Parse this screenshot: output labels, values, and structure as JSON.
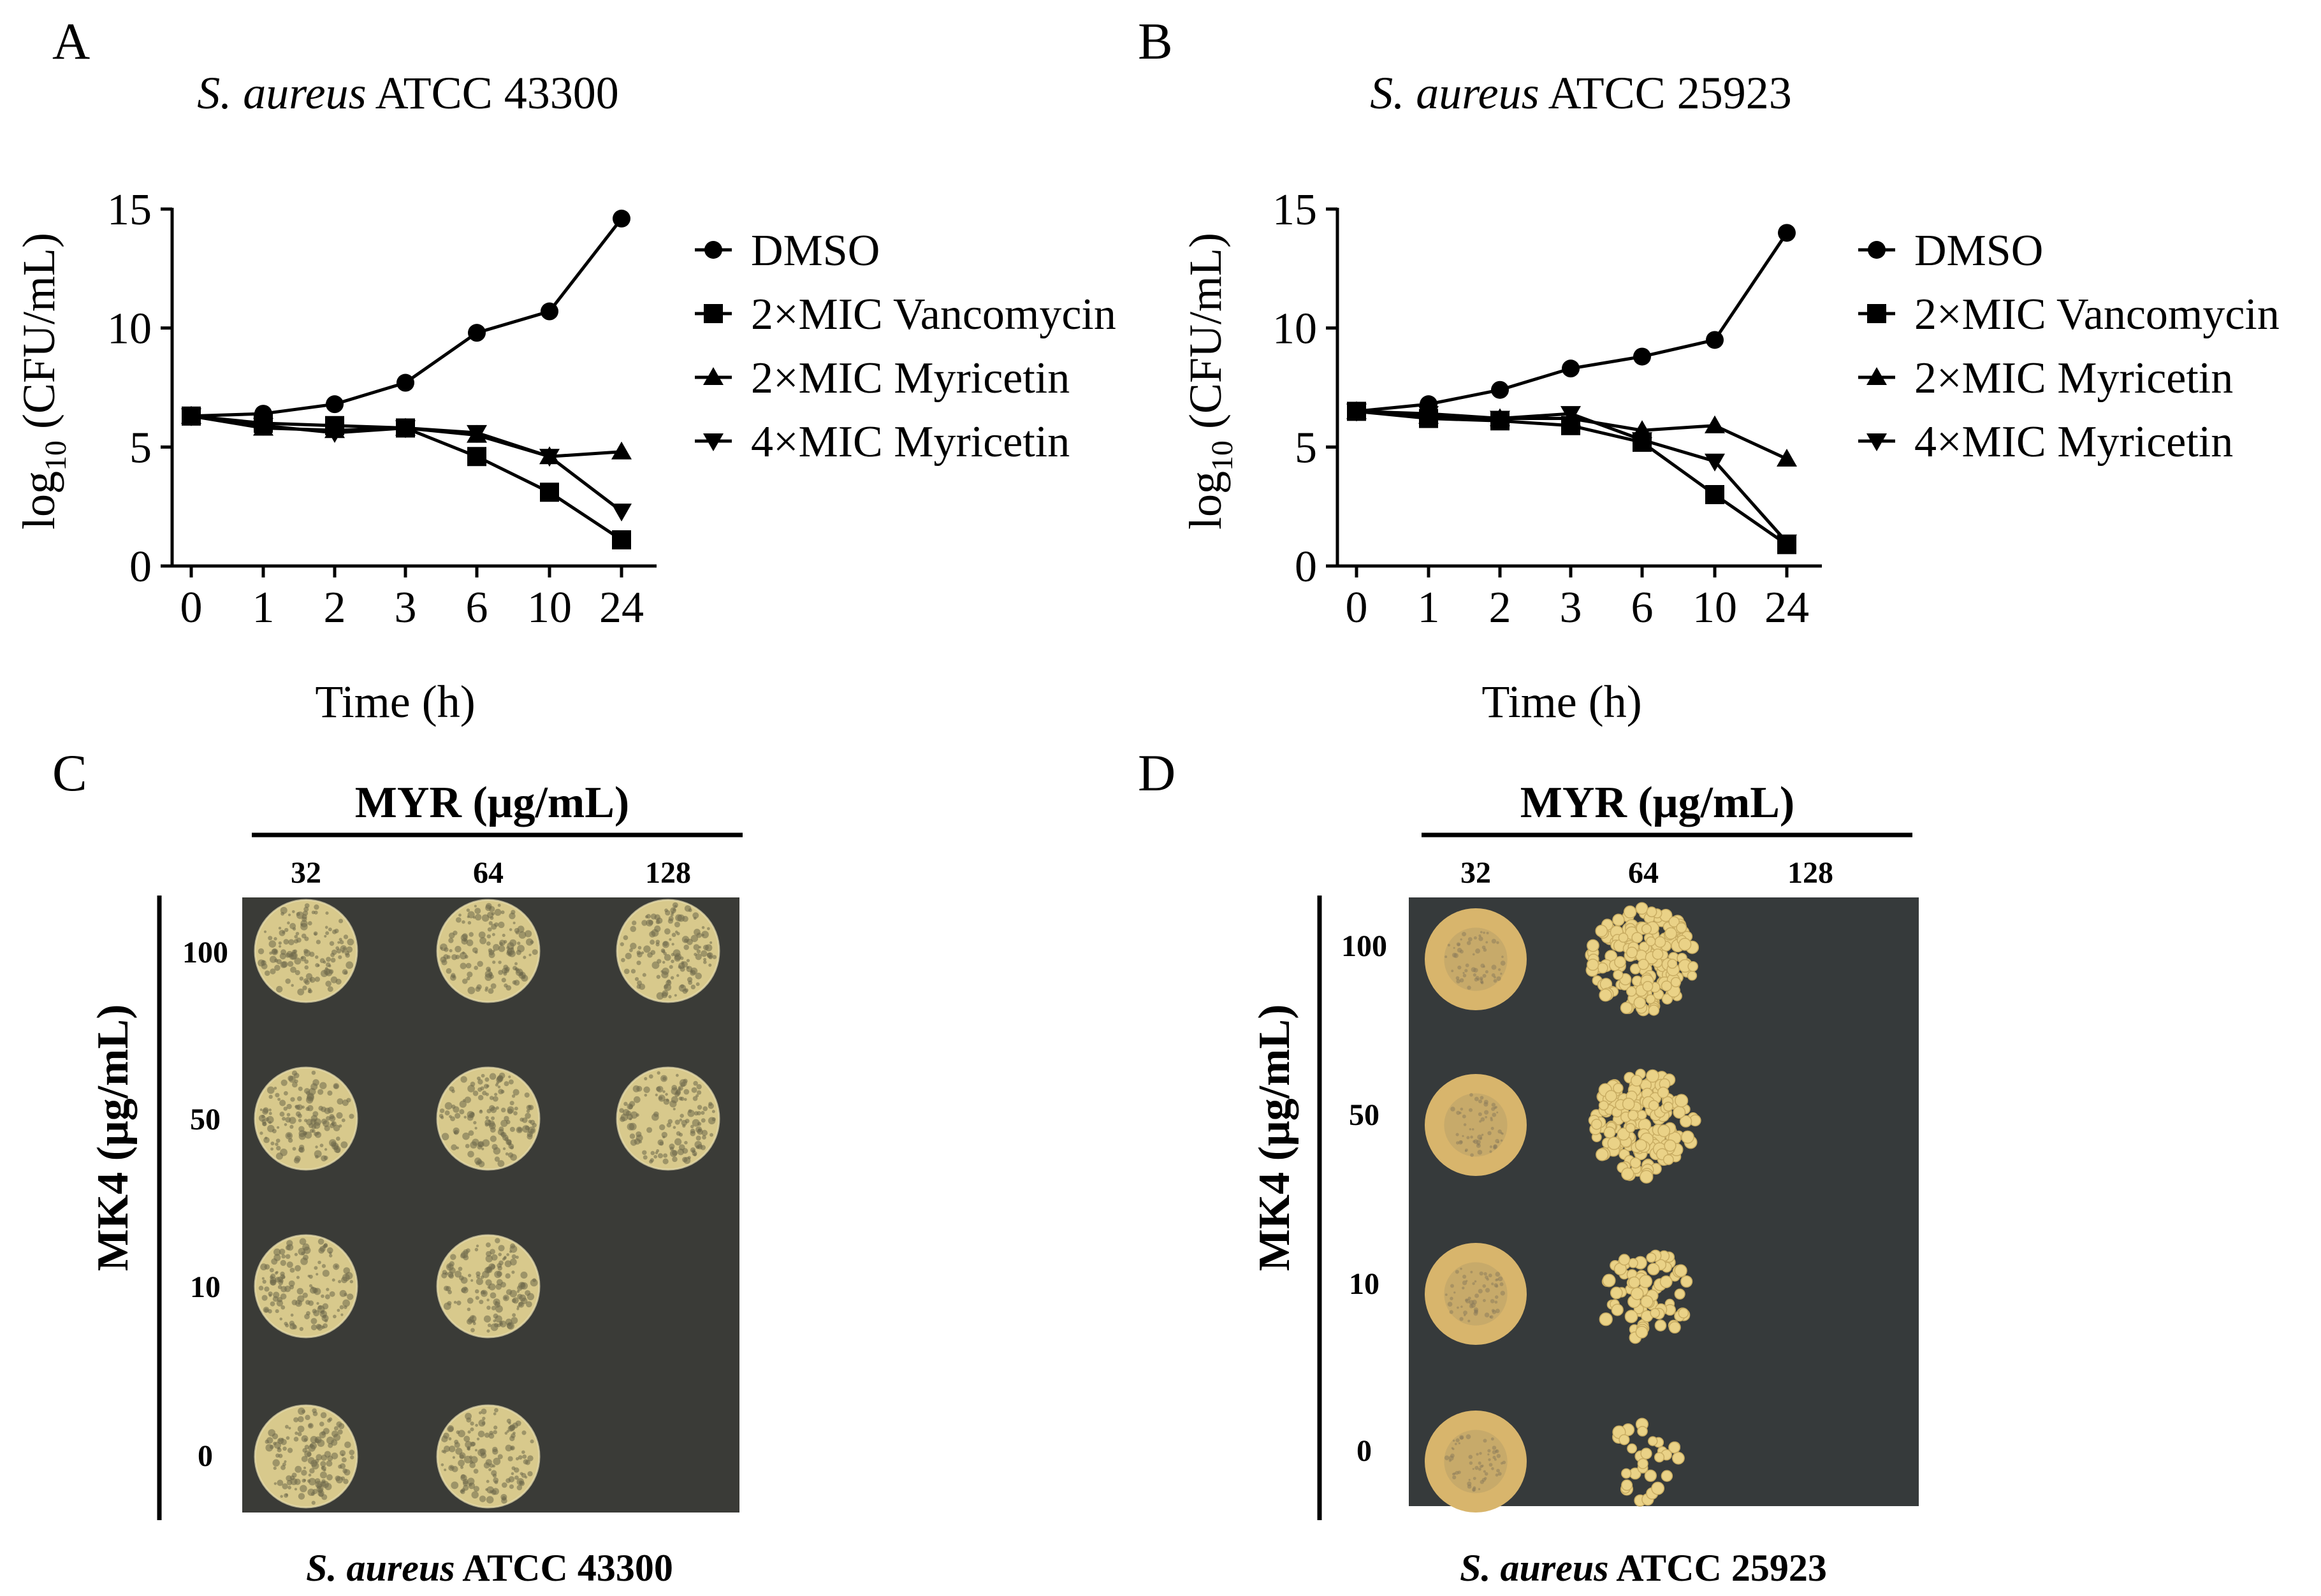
{
  "chart_data": [
    {
      "panel": "A",
      "type": "line",
      "title": "S. aureus ATCC 43300",
      "title_italic_part": "S. aureus",
      "title_plain_part": "ATCC 43300",
      "xlabel": "Time (h)",
      "ylabel": "log10 (CFU/mL)",
      "ylabel_parts": [
        "log",
        "10",
        " (CFU/mL)"
      ],
      "categories": [
        "0",
        "1",
        "2",
        "3",
        "6",
        "10",
        "24"
      ],
      "ylim": [
        0,
        15
      ],
      "yticks": [
        "0",
        "5",
        "10",
        "15"
      ],
      "series": [
        {
          "name": "DMSO",
          "marker": "circle",
          "values": [
            6.3,
            6.4,
            6.8,
            7.7,
            9.8,
            10.7,
            14.6
          ]
        },
        {
          "name": "2×MIC Vancomycin",
          "marker": "square",
          "values": [
            6.3,
            6.0,
            5.9,
            5.8,
            4.6,
            3.1,
            1.1
          ]
        },
        {
          "name": "2×MIC Myricetin",
          "marker": "triangle-up",
          "values": [
            6.3,
            5.8,
            5.7,
            5.8,
            5.5,
            4.6,
            4.8
          ]
        },
        {
          "name": "4×MIC Myricetin",
          "marker": "triangle-down",
          "values": [
            6.3,
            5.9,
            5.6,
            5.8,
            5.6,
            4.6,
            2.3
          ]
        }
      ]
    },
    {
      "panel": "B",
      "type": "line",
      "title": "S. aureus ATCC 25923",
      "title_italic_part": "S. aureus",
      "title_plain_part": "ATCC 25923",
      "xlabel": "Time (h)",
      "ylabel": "log10 (CFU/mL)",
      "ylabel_parts": [
        "log",
        "10",
        " (CFU/mL)"
      ],
      "categories": [
        "0",
        "1",
        "2",
        "3",
        "6",
        "10",
        "24"
      ],
      "ylim": [
        0,
        15
      ],
      "yticks": [
        "0",
        "5",
        "10",
        "15"
      ],
      "series": [
        {
          "name": "DMSO",
          "marker": "circle",
          "values": [
            6.5,
            6.8,
            7.4,
            8.3,
            8.8,
            9.5,
            14.0
          ]
        },
        {
          "name": "2×MIC Vancomycin",
          "marker": "square",
          "values": [
            6.5,
            6.2,
            6.1,
            5.9,
            5.2,
            3.0,
            0.9
          ]
        },
        {
          "name": "2×MIC Myricetin",
          "marker": "triangle-up",
          "values": [
            6.5,
            6.3,
            6.2,
            6.2,
            5.7,
            5.9,
            4.5
          ]
        },
        {
          "name": "4×MIC Myricetin",
          "marker": "triangle-down",
          "values": [
            6.5,
            6.4,
            6.2,
            6.4,
            5.3,
            4.4,
            1.0
          ]
        }
      ]
    }
  ],
  "plates": [
    {
      "panel": "C",
      "header": "MYR  (μg/mL)",
      "columns": [
        "32",
        "64",
        "128"
      ],
      "row_axis": "MK4 (μg/mL)",
      "rows": [
        "100",
        "50",
        "10",
        "0"
      ],
      "footer_italic": "S. aureus",
      "footer_plain": "ATCC 43300",
      "growth": [
        [
          "lawn",
          "lawn",
          "lawn"
        ],
        [
          "lawn",
          "lawn",
          "lawn"
        ],
        [
          "lawn",
          "lawn",
          "none"
        ],
        [
          "lawn",
          "lawn",
          "none"
        ]
      ]
    },
    {
      "panel": "D",
      "header": "MYR  (μg/mL)",
      "columns": [
        "32",
        "64",
        "128"
      ],
      "row_axis": "MK4 (μg/mL)",
      "rows": [
        "100",
        "50",
        "10",
        "0"
      ],
      "footer_italic": "S. aureus",
      "footer_plain": "ATCC 25923",
      "growth": [
        [
          "lawn",
          "dense colonies",
          "none"
        ],
        [
          "lawn",
          "dense colonies",
          "none"
        ],
        [
          "lawn",
          "sparse colonies",
          "none"
        ],
        [
          "lawn",
          "few colonies",
          "none"
        ]
      ]
    }
  ],
  "colors": {
    "ink": "#000000",
    "plate_c_bg": "#3a3b37",
    "plate_d_bg": "#363a3b",
    "growth_c": "#d8c98c",
    "growth_c_dark": "#6e684a",
    "growth_d": "#d8b56c",
    "growth_d_colony": "#ead287"
  }
}
